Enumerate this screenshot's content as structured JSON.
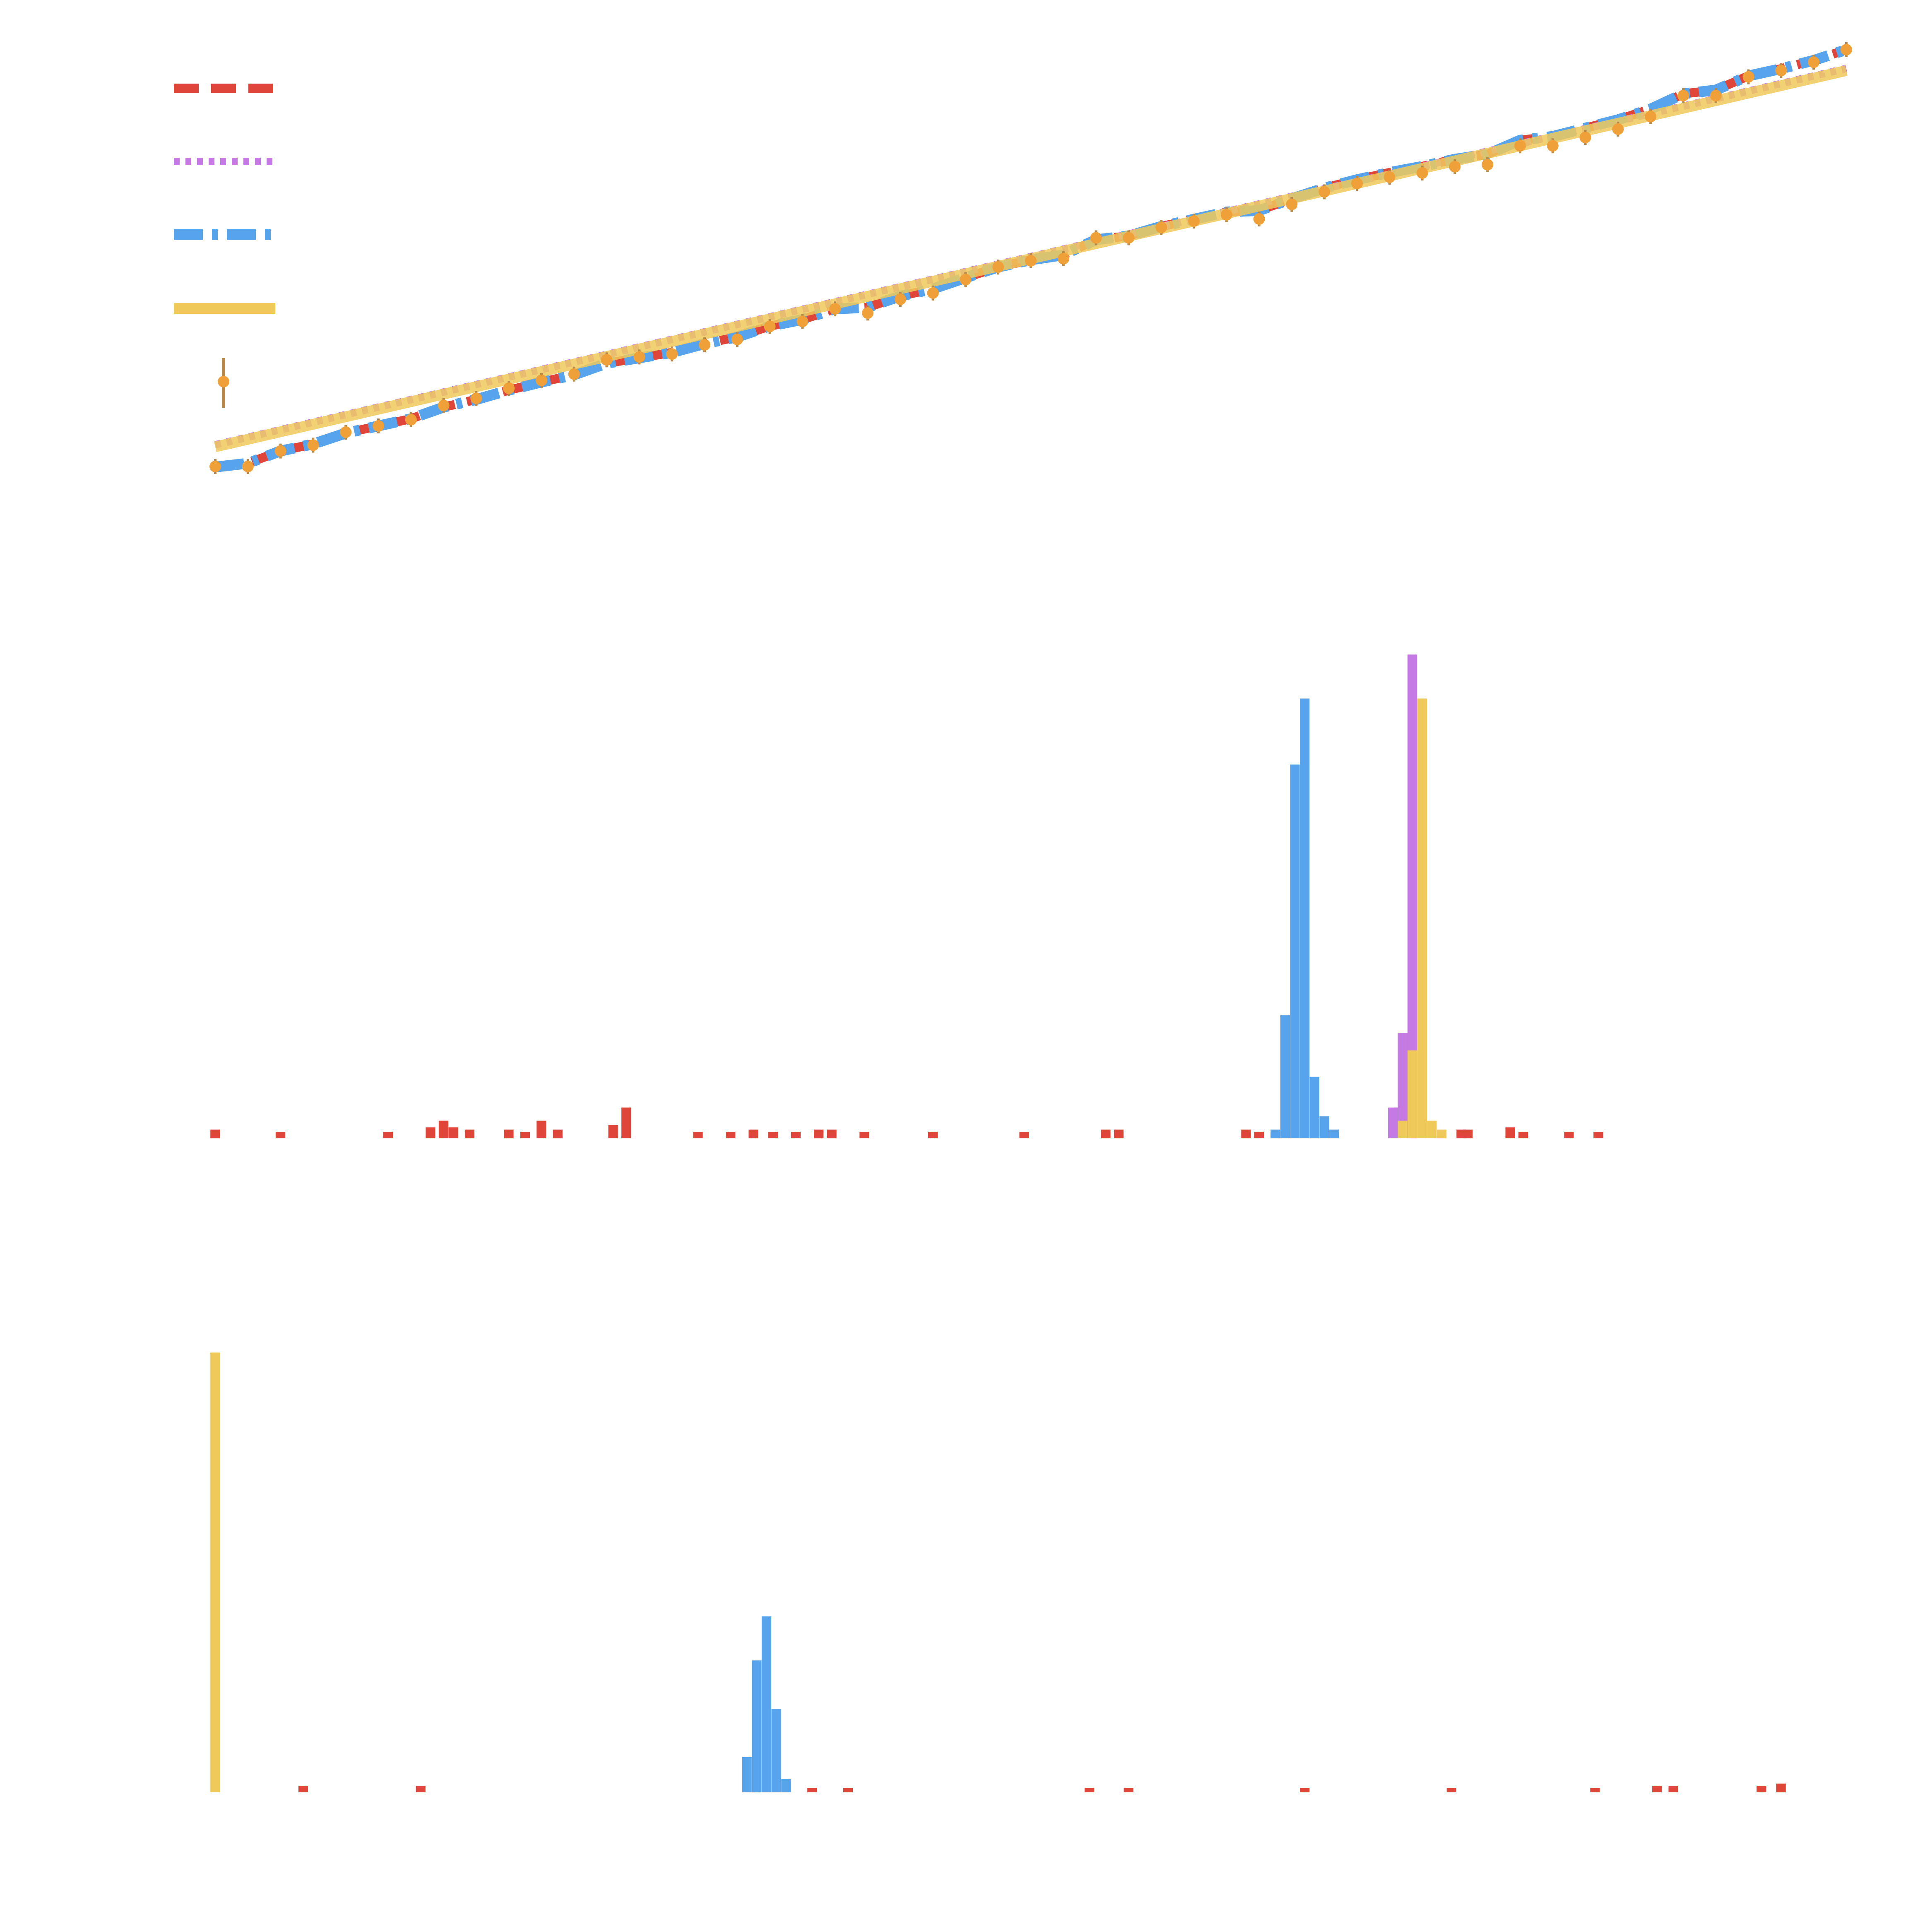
{
  "colors": {
    "red": "#e0453a",
    "purple": "#c479e3",
    "blue": "#57a4ec",
    "yellow": "#efc95a",
    "orange": "#f0a038",
    "gray": "#999999",
    "background": "#ffffff"
  },
  "chart_data": [
    {
      "type": "line",
      "panel": "top",
      "xlim": [
        0,
        50
      ],
      "ylim": [
        0,
        1
      ],
      "grid": false,
      "legend_position": "top-left",
      "series": [
        {
          "style": "dashed",
          "color": "red",
          "y_start": 0.0,
          "y_end": 1.0,
          "wiggle": true
        },
        {
          "style": "dotted",
          "color": "purple",
          "y_start": 0.055,
          "y_end": 0.955,
          "wiggle": false
        },
        {
          "style": "dash-dot",
          "color": "blue",
          "y_start": 0.0,
          "y_end": 1.0,
          "wiggle": true
        },
        {
          "style": "solid",
          "color": "yellow",
          "y_start": 0.05,
          "y_end": 0.95,
          "wiggle": false
        },
        {
          "style": "points",
          "color": "orange",
          "with_errorbars": true
        }
      ],
      "points": {
        "x": [
          0,
          1,
          2,
          3,
          4,
          5,
          6,
          7,
          8,
          9,
          10,
          11,
          12,
          13,
          14,
          15,
          16,
          17,
          18,
          19,
          20,
          21,
          22,
          23,
          24,
          25,
          26,
          27,
          28,
          29,
          30,
          31,
          32,
          33,
          34,
          35,
          36,
          37,
          38,
          39,
          40,
          41,
          42,
          43,
          44,
          45,
          46,
          47,
          48,
          49,
          50
        ],
        "y": [
          0.003,
          0.003,
          0.04,
          0.054,
          0.085,
          0.1,
          0.115,
          0.149,
          0.166,
          0.19,
          0.209,
          0.224,
          0.258,
          0.265,
          0.272,
          0.294,
          0.307,
          0.338,
          0.35,
          0.38,
          0.37,
          0.403,
          0.418,
          0.45,
          0.48,
          0.495,
          0.5,
          0.55,
          0.55,
          0.575,
          0.59,
          0.605,
          0.595,
          0.63,
          0.66,
          0.68,
          0.695,
          0.705,
          0.72,
          0.725,
          0.77,
          0.77,
          0.79,
          0.81,
          0.84,
          0.89,
          0.89,
          0.935,
          0.95,
          0.97,
          1.0
        ]
      }
    },
    {
      "type": "bar",
      "panel": "middle",
      "xlim": [
        0,
        50
      ],
      "ylim": [
        0,
        1.12
      ],
      "grid": false,
      "series": [
        {
          "color": "red",
          "bars": [
            [
              0,
              0.02
            ],
            [
              2,
              0.015
            ],
            [
              5.3,
              0.015
            ],
            [
              6.6,
              0.025
            ],
            [
              7,
              0.04
            ],
            [
              7.3,
              0.025
            ],
            [
              7.8,
              0.02
            ],
            [
              9,
              0.02
            ],
            [
              9.5,
              0.015
            ],
            [
              10,
              0.04
            ],
            [
              10.5,
              0.02
            ],
            [
              12.2,
              0.03
            ],
            [
              12.6,
              0.07
            ],
            [
              14.8,
              0.015
            ],
            [
              15.8,
              0.015
            ],
            [
              16.5,
              0.02
            ],
            [
              17.1,
              0.015
            ],
            [
              17.8,
              0.015
            ],
            [
              18.5,
              0.02
            ],
            [
              18.9,
              0.02
            ],
            [
              19.9,
              0.015
            ],
            [
              22,
              0.015
            ],
            [
              24.8,
              0.015
            ],
            [
              27.3,
              0.02
            ],
            [
              27.7,
              0.02
            ],
            [
              31.6,
              0.02
            ],
            [
              32,
              0.015
            ],
            [
              38.2,
              0.02
            ],
            [
              38.4,
              0.02
            ],
            [
              39.7,
              0.025
            ],
            [
              40.1,
              0.015
            ],
            [
              41.5,
              0.015
            ],
            [
              42.4,
              0.015
            ]
          ]
        },
        {
          "color": "blue",
          "bars": [
            [
              32.5,
              0.02
            ],
            [
              32.8,
              0.28
            ],
            [
              33.1,
              0.85
            ],
            [
              33.4,
              1.0
            ],
            [
              33.7,
              0.14
            ],
            [
              34.0,
              0.05
            ],
            [
              34.3,
              0.02
            ]
          ]
        },
        {
          "color": "gray",
          "bars": [
            [
              36.3,
              0.07
            ],
            [
              36.6,
              0.24
            ]
          ]
        },
        {
          "color": "purple",
          "bars": [
            [
              36.1,
              0.07
            ],
            [
              36.4,
              0.24
            ],
            [
              36.7,
              1.1
            ]
          ]
        },
        {
          "color": "yellow",
          "bars": [
            [
              36.4,
              0.04
            ],
            [
              36.7,
              0.2
            ],
            [
              37.0,
              1.0
            ],
            [
              37.3,
              0.04
            ],
            [
              37.6,
              0.02
            ]
          ]
        }
      ]
    },
    {
      "type": "bar",
      "panel": "bottom",
      "xlim": [
        0,
        50
      ],
      "ylim": [
        0,
        1.12
      ],
      "grid": false,
      "series": [
        {
          "color": "yellow",
          "bars": [
            [
              0,
              1.0
            ]
          ]
        },
        {
          "color": "red",
          "bars": [
            [
              2.7,
              0.015
            ],
            [
              6.3,
              0.015
            ],
            [
              18.3,
              0.01
            ],
            [
              19.4,
              0.01
            ],
            [
              26.8,
              0.01
            ],
            [
              28.0,
              0.01
            ],
            [
              33.4,
              0.01
            ],
            [
              37.9,
              0.01
            ],
            [
              42.3,
              0.01
            ],
            [
              44.2,
              0.015
            ],
            [
              44.7,
              0.015
            ],
            [
              47.4,
              0.015
            ],
            [
              48.0,
              0.02
            ]
          ]
        },
        {
          "color": "blue",
          "bars": [
            [
              16.3,
              0.08
            ],
            [
              16.6,
              0.3
            ],
            [
              16.9,
              0.4
            ],
            [
              17.2,
              0.19
            ],
            [
              17.5,
              0.03
            ]
          ]
        }
      ]
    }
  ]
}
